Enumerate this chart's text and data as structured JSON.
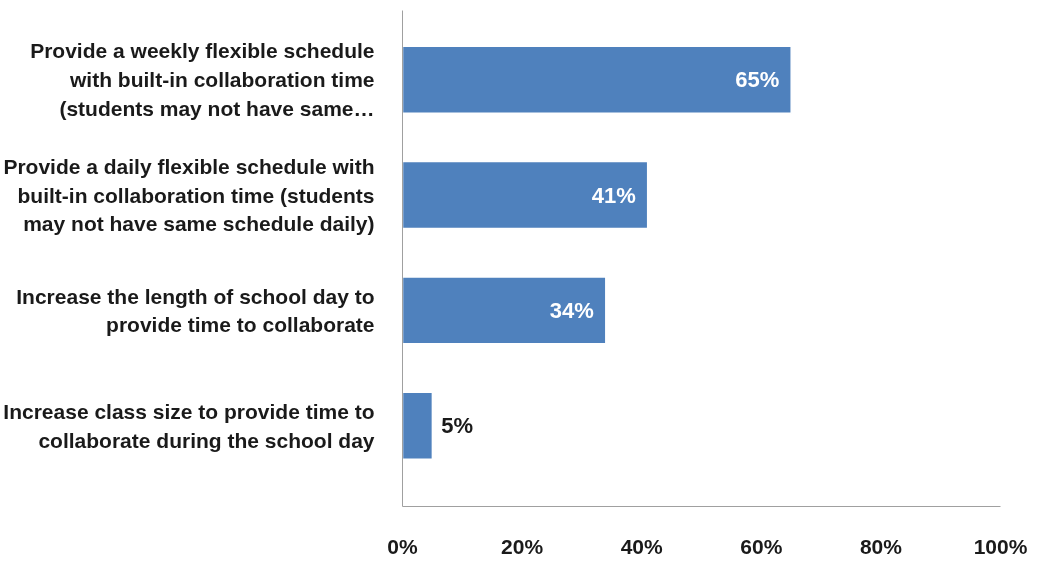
{
  "chart_data": {
    "type": "bar",
    "orientation": "horizontal",
    "categories": [
      "Provide a weekly flexible schedule with built-in collaboration time (students may not have same…",
      "Provide a daily flexible schedule with built-in collaboration time (students may not have same schedule daily)",
      "Increase the length of school day to provide time to collaborate",
      "Increase class size to provide time to collaborate during the school day"
    ],
    "values": [
      65,
      41,
      34,
      5
    ],
    "value_labels": [
      "65%",
      "41%",
      "34%",
      "5%"
    ],
    "color": "#4f81bd",
    "xlim": [
      0,
      100
    ],
    "xticks": [
      {
        "value": 0,
        "label": "0%"
      },
      {
        "value": 20,
        "label": "20%"
      },
      {
        "value": 40,
        "label": "40%"
      },
      {
        "value": 60,
        "label": "60%"
      },
      {
        "value": 80,
        "label": "80%"
      },
      {
        "value": 100,
        "label": "100%"
      }
    ],
    "grid": false
  }
}
